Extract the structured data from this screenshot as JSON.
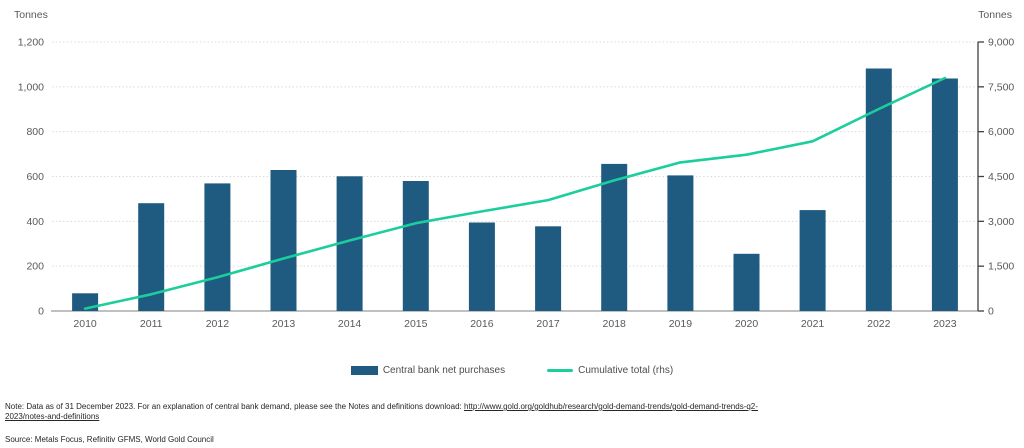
{
  "chart_data": {
    "type": "bar",
    "categories": [
      "2010",
      "2011",
      "2012",
      "2013",
      "2014",
      "2015",
      "2016",
      "2017",
      "2018",
      "2019",
      "2020",
      "2021",
      "2022",
      "2023"
    ],
    "series": [
      {
        "name": "Central bank net purchases",
        "type": "bar",
        "axis": "left",
        "color": "#1F5B80",
        "values": [
          79,
          481,
          569,
          629,
          601,
          580,
          395,
          378,
          656,
          605,
          255,
          450,
          1082,
          1037
        ]
      },
      {
        "name": "Cumulative total (rhs)",
        "type": "line",
        "axis": "right",
        "color": "#1BCE9C",
        "values": [
          79,
          560,
          1129,
          1758,
          2359,
          2939,
          3334,
          3712,
          4368,
          4973,
          5228,
          5678,
          6760,
          7797
        ]
      }
    ],
    "left_axis": {
      "title": "Tonnes",
      "min": 0,
      "max": 1200,
      "step": 200,
      "tick_labels": [
        "0",
        "200",
        "400",
        "600",
        "800",
        "1,000",
        "1,200"
      ]
    },
    "right_axis": {
      "title": "Tonnes",
      "min": 0,
      "max": 9000,
      "step": 1500,
      "tick_labels": [
        "0",
        "1,500",
        "3,000",
        "4,500",
        "6,000",
        "7,500",
        "9,000"
      ]
    },
    "grid": "horizontal-dotted",
    "legend_position": "bottom",
    "colors": {
      "gridline": "#D9D9D9",
      "x_axis_line": "#9B9B9B",
      "right_axis_line": "#404040",
      "tick_text": "#595959"
    }
  },
  "footer": {
    "note_prefix": "Note: Data as of 31 December 2023. For an explanation of central bank demand, please see the Notes and definitions download: ",
    "note_link": "http://www.gold.org/goldhub/research/gold-demand-trends/gold-demand-trends-q2-2023/notes-and-definitions",
    "source": "Source: Metals Focus, Refinitiv GFMS, World Gold Council"
  }
}
